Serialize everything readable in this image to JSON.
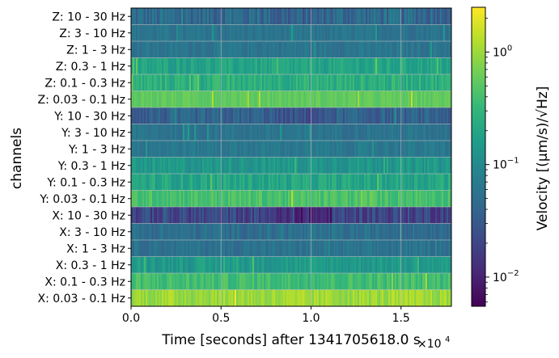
{
  "chart_data": {
    "type": "heatmap",
    "title": "",
    "xlabel": "Time [seconds] after 1341705618.0 s",
    "x_offset_label": "×10",
    "x_offset_exponent": "4",
    "ylabel": "channels",
    "xlim": [
      0,
      17800
    ],
    "x_ticks": [
      0.0,
      0.5,
      1.0,
      1.5
    ],
    "x_tick_labels": [
      "0.0",
      "0.5",
      "1.0",
      "1.5"
    ],
    "grid": true,
    "colorbar": {
      "label": "Velocity [(μm/s)/√Hz]",
      "scale": "log",
      "min": 0.0055,
      "max": 2.5,
      "ticks": [
        {
          "value": 1,
          "base": "10",
          "exp": "0"
        },
        {
          "value": 0.1,
          "base": "10",
          "exp": "−1"
        },
        {
          "value": 0.01,
          "base": "10",
          "exp": "−2"
        }
      ],
      "colormap": [
        "#440154",
        "#482878",
        "#3e4989",
        "#31688e",
        "#26828e",
        "#1f9e89",
        "#35b779",
        "#6ece58",
        "#b5de2b",
        "#fde725"
      ]
    },
    "channels": [
      {
        "label": "Z: 10 - 30 Hz",
        "level": 0.045,
        "var": 0.25,
        "quiet_start": 0.44,
        "quiet_end": 0.6,
        "quiet_factor": 0.8
      },
      {
        "label": "Z: 3 - 10 Hz",
        "level": 0.058,
        "var": 0.12
      },
      {
        "label": "Z: 1 - 3 Hz",
        "level": 0.06,
        "var": 0.12
      },
      {
        "label": "Z: 0.3 - 1 Hz",
        "level": 0.19,
        "var": 0.15
      },
      {
        "label": "Z: 0.1 - 0.3 Hz",
        "level": 0.26,
        "var": 0.18
      },
      {
        "label": "Z: 0.03 - 0.1 Hz",
        "level": 0.55,
        "var": 0.08
      },
      {
        "label": "Y: 10 - 30 Hz",
        "level": 0.036,
        "var": 0.2,
        "quiet_start": 0.44,
        "quiet_end": 0.61,
        "quiet_factor": 0.7
      },
      {
        "label": "Y: 3 - 10 Hz",
        "level": 0.058,
        "var": 0.12
      },
      {
        "label": "Y: 1 - 3 Hz",
        "level": 0.065,
        "var": 0.12
      },
      {
        "label": "Y: 0.3 - 1 Hz",
        "level": 0.14,
        "var": 0.15
      },
      {
        "label": "Y: 0.1 - 0.3 Hz",
        "level": 0.2,
        "var": 0.18
      },
      {
        "label": "Y: 0.03 - 0.1 Hz",
        "level": 0.42,
        "var": 0.15
      },
      {
        "label": "X: 10 - 30 Hz",
        "level": 0.02,
        "var": 0.25,
        "quiet_start": 0.44,
        "quiet_end": 0.63,
        "quiet_factor": 0.55
      },
      {
        "label": "X: 3 - 10 Hz",
        "level": 0.05,
        "var": 0.15
      },
      {
        "label": "X: 1 - 3 Hz",
        "level": 0.055,
        "var": 0.13
      },
      {
        "label": "X: 0.3 - 1 Hz",
        "level": 0.15,
        "var": 0.15
      },
      {
        "label": "X: 0.1 - 0.3 Hz",
        "level": 0.38,
        "var": 0.15
      },
      {
        "label": "X: 0.03 - 0.1 Hz",
        "level": 1.0,
        "var": 0.15
      }
    ]
  }
}
